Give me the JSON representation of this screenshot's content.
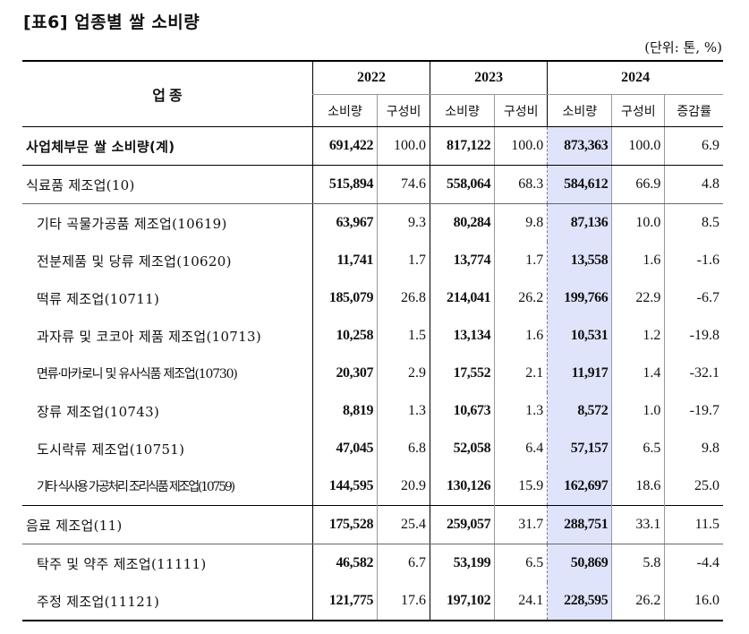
{
  "title": "[표6] 업종별 쌀 소비량",
  "unit": "(단위: 톤, %)",
  "header": {
    "industry": "업  종",
    "years": [
      "2022",
      "2023",
      "2024"
    ],
    "consumption": "소비량",
    "share": "구성비",
    "change": "증감률"
  },
  "rows": [
    {
      "name": "사업체부문 쌀 소비량(계)",
      "v2022": "691,422",
      "p2022": "100.0",
      "v2023": "817,122",
      "p2023": "100.0",
      "v2024": "873,363",
      "p2024": "100.0",
      "chg": "6.9"
    },
    {
      "name": "식료품 제조업(10)",
      "v2022": "515,894",
      "p2022": "74.6",
      "v2023": "558,064",
      "p2023": "68.3",
      "v2024": "584,612",
      "p2024": "66.9",
      "chg": "4.8"
    },
    {
      "name": "기타 곡물가공품 제조업(10619)",
      "v2022": "63,967",
      "p2022": "9.3",
      "v2023": "80,284",
      "p2023": "9.8",
      "v2024": "87,136",
      "p2024": "10.0",
      "chg": "8.5"
    },
    {
      "name": "전분제품 및 당류 제조업(10620)",
      "v2022": "11,741",
      "p2022": "1.7",
      "v2023": "13,774",
      "p2023": "1.7",
      "v2024": "13,558",
      "p2024": "1.6",
      "chg": "-1.6"
    },
    {
      "name": "떡류 제조업(10711)",
      "v2022": "185,079",
      "p2022": "26.8",
      "v2023": "214,041",
      "p2023": "26.2",
      "v2024": "199,766",
      "p2024": "22.9",
      "chg": "-6.7"
    },
    {
      "name": "과자류 및 코코아 제품 제조업(10713)",
      "v2022": "10,258",
      "p2022": "1.5",
      "v2023": "13,134",
      "p2023": "1.6",
      "v2024": "10,531",
      "p2024": "1.2",
      "chg": "-19.8"
    },
    {
      "name": "면류·마카로니 및 유사식품 제조업(10730)",
      "v2022": "20,307",
      "p2022": "2.9",
      "v2023": "17,552",
      "p2023": "2.1",
      "v2024": "11,917",
      "p2024": "1.4",
      "chg": "-32.1"
    },
    {
      "name": "장류 제조업(10743)",
      "v2022": "8,819",
      "p2022": "1.3",
      "v2023": "10,673",
      "p2023": "1.3",
      "v2024": "8,572",
      "p2024": "1.0",
      "chg": "-19.7"
    },
    {
      "name": "도시락류 제조업(10751)",
      "v2022": "47,045",
      "p2022": "6.8",
      "v2023": "52,058",
      "p2023": "6.4",
      "v2024": "57,157",
      "p2024": "6.5",
      "chg": "9.8"
    },
    {
      "name": "기타 식사용 가공처리 조리식품 제조업(10759)",
      "v2022": "144,595",
      "p2022": "20.9",
      "v2023": "130,126",
      "p2023": "15.9",
      "v2024": "162,697",
      "p2024": "18.6",
      "chg": "25.0"
    },
    {
      "name": "음료 제조업(11)",
      "v2022": "175,528",
      "p2022": "25.4",
      "v2023": "259,057",
      "p2023": "31.7",
      "v2024": "288,751",
      "p2024": "33.1",
      "chg": "11.5"
    },
    {
      "name": "탁주 및 약주 제조업(11111)",
      "v2022": "46,582",
      "p2022": "6.7",
      "v2023": "53,199",
      "p2023": "6.5",
      "v2024": "50,869",
      "p2024": "5.8",
      "chg": "-4.4"
    },
    {
      "name": "주정 제조업(11121)",
      "v2022": "121,775",
      "p2022": "17.6",
      "v2023": "197,102",
      "p2023": "24.1",
      "v2024": "228,595",
      "p2024": "26.2",
      "chg": "16.0"
    }
  ]
}
